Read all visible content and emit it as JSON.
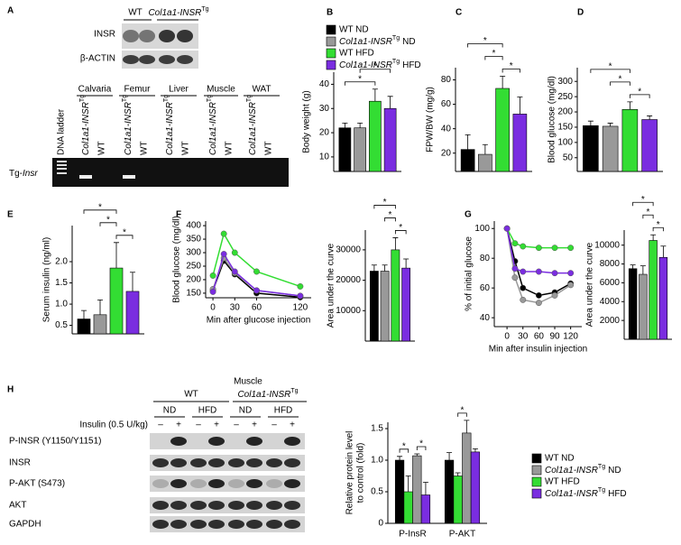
{
  "panel_labels": [
    "A",
    "B",
    "C",
    "D",
    "E",
    "F",
    "G",
    "H"
  ],
  "blot_a": {
    "groups": [
      "WT",
      [
        {
          "text": "Col1a1-INSR",
          "style": "italic"
        },
        {
          "text": "Tg",
          "style": "sup"
        }
      ]
    ],
    "rows": [
      "INSR",
      "β-ACTIN"
    ],
    "ladder": "DNA ladder",
    "tissues": [
      "Calvaria",
      "Femur",
      "Liver",
      "Muscle",
      "WAT"
    ],
    "lanes": [
      [
        {
          "text": "Col1a1-INSR",
          "style": "italic"
        },
        {
          "text": "Tg",
          "style": "sup"
        }
      ],
      "WT",
      [
        {
          "text": "Col1a1-INSR",
          "style": "italic"
        },
        {
          "text": "Tg",
          "style": "sup"
        }
      ],
      "WT",
      [
        {
          "text": "Col1a1-INSR",
          "style": "italic"
        },
        {
          "text": "Tg",
          "style": "sup"
        }
      ],
      "WT",
      [
        {
          "text": "Col1a1-INSR",
          "style": "italic"
        },
        {
          "text": "Tg",
          "style": "sup"
        }
      ],
      "WT",
      [
        {
          "text": "Col1a1-INSR",
          "style": "italic"
        },
        {
          "text": "Tg",
          "style": "sup"
        }
      ],
      "WT"
    ],
    "band": [
      {
        "text": "Tg-"
      },
      {
        "text": "Insr",
        "style": "italic"
      }
    ]
  },
  "blot_h": {
    "title": "Muscle",
    "groups": [
      "WT",
      [
        {
          "text": "Col1a1-INSR",
          "style": "italic"
        },
        {
          "text": "Tg",
          "style": "sup"
        }
      ]
    ],
    "diets": [
      "ND",
      "HFD",
      "ND",
      "HFD"
    ],
    "treatment": "Insulin (0.5 U/kg)",
    "doses": [
      "–",
      "+",
      "–",
      "+",
      "–",
      "+",
      "–",
      "+"
    ],
    "rows": [
      "P-INSR (Y1150/Y1151)",
      "INSR",
      "P-AKT (S473)",
      "AKT",
      "GAPDH"
    ]
  },
  "chart_data": [
    {
      "type": "bar",
      "ylabel": "Body weight (g)",
      "values": [
        22,
        22,
        33,
        30
      ],
      "errors": [
        2,
        2,
        5,
        5
      ],
      "colors": [
        "#000000",
        "#999999",
        "#33dd33",
        "#7a2de0"
      ],
      "ylim": [
        4,
        45
      ],
      "yticks": [
        10,
        20,
        30,
        40
      ],
      "significance": [
        {
          "pair": [
            0,
            2
          ],
          "label": "*"
        },
        {
          "pair": [
            1,
            3
          ],
          "label": "*"
        }
      ],
      "legend": [
        {
          "label": "WT ND",
          "color": "#000000"
        },
        {
          "label": [
            {
              "text": "Col1a1-INSR",
              "style": "italic"
            },
            {
              "text": "Tg",
              "style": "sup"
            },
            {
              "text": "ND"
            }
          ],
          "color": "#999999"
        },
        {
          "label": "WT HFD",
          "color": "#33dd33"
        },
        {
          "label": [
            {
              "text": "Col1a1-INSR",
              "style": "italic"
            },
            {
              "text": "Tg",
              "style": "sup"
            },
            {
              "text": "HFD"
            }
          ],
          "color": "#7a2de0"
        }
      ]
    },
    {
      "type": "bar",
      "ylabel": "FPW/BW (mg/g)",
      "values": [
        23,
        19,
        73,
        52
      ],
      "errors": [
        12,
        8,
        10,
        14
      ],
      "colors": [
        "#000000",
        "#999999",
        "#33dd33",
        "#7a2de0"
      ],
      "ylim": [
        5,
        90
      ],
      "yticks": [
        20,
        40,
        60,
        80
      ],
      "significance": [
        {
          "pair": [
            2,
            3
          ],
          "label": "*"
        },
        {
          "pair": [
            1,
            2
          ],
          "label": "*"
        },
        {
          "pair": [
            0,
            2
          ],
          "label": "*"
        }
      ]
    },
    {
      "type": "bar",
      "ylabel": "Blood glucose (mg/dl)",
      "values": [
        155,
        153,
        208,
        175
      ],
      "errors": [
        15,
        10,
        25,
        12
      ],
      "colors": [
        "#000000",
        "#999999",
        "#33dd33",
        "#7a2de0"
      ],
      "ylim": [
        5,
        345
      ],
      "yticks": [
        50,
        100,
        150,
        200,
        250,
        300
      ],
      "significance": [
        {
          "pair": [
            2,
            3
          ],
          "label": "*"
        },
        {
          "pair": [
            1,
            2
          ],
          "label": "*"
        },
        {
          "pair": [
            0,
            2
          ],
          "label": "*"
        }
      ]
    },
    {
      "type": "bar",
      "ylabel": "Serum insulin (ng/ml)",
      "values": [
        0.65,
        0.75,
        1.85,
        1.3
      ],
      "errors": [
        0.2,
        0.35,
        0.6,
        0.45
      ],
      "colors": [
        "#000000",
        "#999999",
        "#33dd33",
        "#7a2de0"
      ],
      "ylim": [
        0.3,
        2.85
      ],
      "yticks": [
        0.5,
        {
          "value": 1,
          "label": "1.0"
        },
        1.5,
        {
          "value": 2,
          "label": "2.0"
        }
      ],
      "significance": [
        {
          "pair": [
            2,
            3
          ],
          "label": "*"
        },
        {
          "pair": [
            1,
            2
          ],
          "label": "*"
        },
        {
          "pair": [
            0,
            2
          ],
          "label": "*"
        }
      ]
    },
    {
      "type": "line",
      "ylabel": "Blood glucose (mg/dl)",
      "xlabel": "Min after glucose injection",
      "x": [
        0,
        15,
        30,
        60,
        120
      ],
      "xlim": [
        -10,
        135
      ],
      "xticks": [
        0,
        30,
        60,
        120
      ],
      "ylim": [
        133,
        417
      ],
      "yticks": [
        150,
        200,
        250,
        300,
        350,
        400
      ],
      "series": [
        {
          "color": "#000000",
          "values": [
            160,
            270,
            220,
            150,
            135
          ]
        },
        {
          "color": "#999999",
          "values": [
            165,
            280,
            225,
            160,
            140
          ]
        },
        {
          "color": "#33dd33",
          "values": [
            215,
            370,
            300,
            230,
            175
          ]
        },
        {
          "color": "#7a2de0",
          "values": [
            155,
            295,
            230,
            160,
            140
          ]
        }
      ]
    },
    {
      "type": "bar",
      "ylabel": "Area under the curve",
      "values": [
        23000,
        23000,
        30000,
        24000
      ],
      "errors": [
        2000,
        2000,
        4000,
        3000
      ],
      "colors": [
        "#000000",
        "#999999",
        "#33dd33",
        "#7a2de0"
      ],
      "ylim": [
        0,
        36500
      ],
      "yticks": [
        10000,
        20000,
        30000
      ],
      "significance": [
        {
          "pair": [
            2,
            3
          ],
          "label": "*"
        },
        {
          "pair": [
            1,
            2
          ],
          "label": "*"
        },
        {
          "pair": [
            0,
            2
          ],
          "label": "*"
        }
      ]
    },
    {
      "type": "line",
      "ylabel": "% of initial glucose",
      "xlabel": "Min after insulin injection",
      "x": [
        0,
        15,
        30,
        60,
        90,
        120
      ],
      "xlim": [
        -24,
        141
      ],
      "xticks": [
        0,
        30,
        60,
        90,
        120
      ],
      "ylim": [
        34,
        105
      ],
      "yticks": [
        40,
        60,
        80,
        100
      ],
      "series": [
        {
          "color": "#000000",
          "values": [
            100,
            78,
            60,
            55,
            57,
            63
          ]
        },
        {
          "color": "#999999",
          "values": [
            100,
            67,
            52,
            50,
            55,
            62
          ]
        },
        {
          "color": "#33dd33",
          "values": [
            100,
            90,
            88,
            87,
            87,
            87
          ]
        },
        {
          "color": "#7a2de0",
          "values": [
            100,
            73,
            71,
            71,
            70,
            70
          ]
        }
      ]
    },
    {
      "type": "bar",
      "ylabel": "Area under the curve",
      "values": [
        7500,
        6900,
        10500,
        8700
      ],
      "errors": [
        400,
        900,
        600,
        1200
      ],
      "colors": [
        "#000000",
        "#999999",
        "#33dd33",
        "#7a2de0"
      ],
      "ylim": [
        0,
        11600
      ],
      "yticks": [
        2000,
        4000,
        6000,
        8000,
        10000
      ],
      "significance": [
        {
          "pair": [
            2,
            3
          ],
          "label": "*"
        },
        {
          "pair": [
            1,
            2
          ],
          "label": "*"
        },
        {
          "pair": [
            0,
            2
          ],
          "label": "*"
        }
      ]
    },
    {
      "type": "bar",
      "ylabel": [
        "Relative protein level",
        "to control (fold)"
      ],
      "categories": [
        "P-InsR",
        "P-AKT"
      ],
      "series": [
        {
          "color": "#000000",
          "values": [
            1.0,
            1.0
          ],
          "errors": [
            0.06,
            0.12
          ]
        },
        {
          "color": "#33dd33",
          "values": [
            0.5,
            0.75
          ],
          "errors": [
            0.25,
            0.05
          ]
        },
        {
          "color": "#999999",
          "values": [
            1.07,
            1.43
          ],
          "errors": [
            0.03,
            0.2
          ]
        },
        {
          "color": "#7a2de0",
          "values": [
            0.45,
            1.13
          ],
          "errors": [
            0.2,
            0.05
          ]
        }
      ],
      "ylim": [
        0,
        1.6
      ],
      "yticks": [
        0,
        0.5,
        {
          "value": 1,
          "label": "1.0"
        },
        1.5
      ],
      "significance": [
        {
          "category": 0,
          "pair": [
            0,
            1
          ],
          "label": "*"
        },
        {
          "category": 0,
          "pair": [
            2,
            3
          ],
          "label": "*"
        },
        {
          "category": 1,
          "pair": [
            1,
            2
          ],
          "label": "*"
        }
      ],
      "legend": [
        {
          "label": "WT ND",
          "color": "#000000"
        },
        {
          "label": [
            {
              "text": "Col1a1-INSR",
              "style": "italic"
            },
            {
              "text": "Tg",
              "style": "sup"
            },
            {
              "text": "ND"
            }
          ],
          "color": "#999999"
        },
        {
          "label": "WT HFD",
          "color": "#33dd33"
        },
        {
          "label": [
            {
              "text": "Col1a1-INSR",
              "style": "italic"
            },
            {
              "text": "Tg",
              "style": "sup"
            },
            {
              "text": "HFD"
            }
          ],
          "color": "#7a2de0"
        }
      ]
    }
  ]
}
